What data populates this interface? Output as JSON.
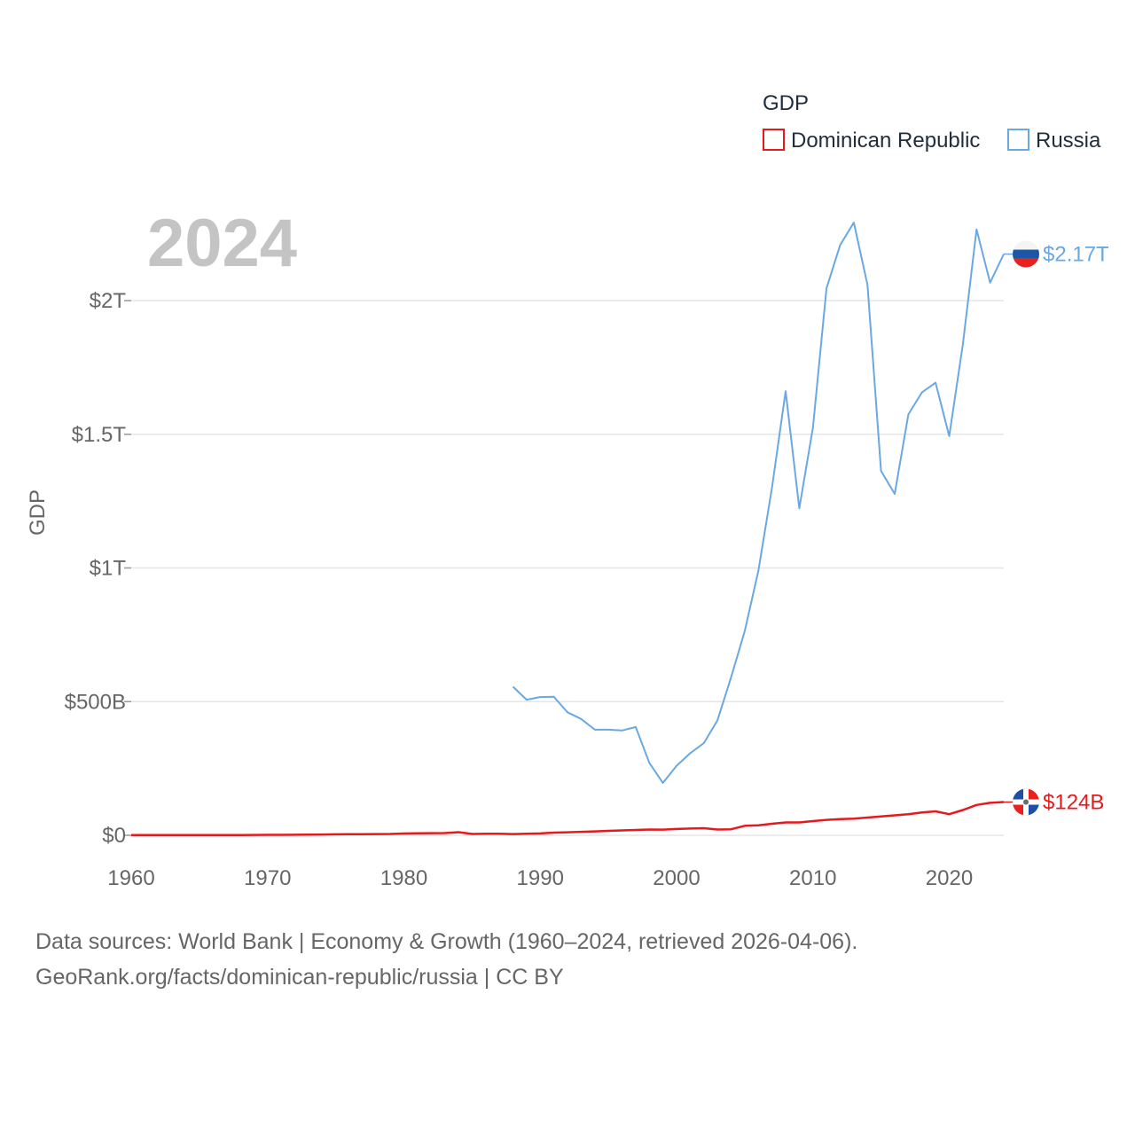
{
  "chart_data": {
    "type": "line",
    "title": "",
    "legend_title": "GDP",
    "legend_position": "top-right",
    "year_label": "2024",
    "ylabel": "GDP",
    "xlabel": "",
    "xlim": [
      1960,
      2024
    ],
    "ylim": [
      0,
      2330000000000
    ],
    "x_ticks": [
      1960,
      1970,
      1980,
      1990,
      2000,
      2010,
      2020
    ],
    "x_tick_labels": [
      "1960",
      "1970",
      "1980",
      "1990",
      "2000",
      "2010",
      "2020"
    ],
    "y_ticks": [
      0,
      500000000000,
      1000000000000,
      1500000000000,
      2000000000000
    ],
    "y_tick_labels": [
      "$0",
      "$500B",
      "$1T",
      "$1.5T",
      "$2T"
    ],
    "grid": true,
    "series": [
      {
        "name": "Dominican Republic",
        "color": "#e41a1c",
        "end_label": "$124B",
        "flag": "dominican-republic-flag",
        "x": [
          1960,
          1961,
          1962,
          1963,
          1964,
          1965,
          1966,
          1967,
          1968,
          1969,
          1970,
          1971,
          1972,
          1973,
          1974,
          1975,
          1976,
          1977,
          1978,
          1979,
          1980,
          1981,
          1982,
          1983,
          1984,
          1985,
          1986,
          1987,
          1988,
          1989,
          1990,
          1991,
          1992,
          1993,
          1994,
          1995,
          1996,
          1997,
          1998,
          1999,
          2000,
          2001,
          2002,
          2003,
          2004,
          2005,
          2006,
          2007,
          2008,
          2009,
          2010,
          2011,
          2012,
          2013,
          2014,
          2015,
          2016,
          2017,
          2018,
          2019,
          2020,
          2021,
          2022,
          2023,
          2024
        ],
        "values": [
          700000000.0,
          700000000.0,
          800000000.0,
          900000000.0,
          1000000000.0,
          900000000.0,
          1000000000.0,
          1100000000.0,
          1100000000.0,
          1300000000.0,
          1500000000.0,
          1700000000.0,
          1900000000.0,
          2300000000.0,
          2900000000.0,
          3600000000.0,
          3900000000.0,
          4400000000.0,
          4600000000.0,
          5100000000.0,
          6600000000.0,
          7300000000.0,
          7900000000.0,
          8400000000.0,
          11600000000.0,
          5000000000.0,
          5900000000.0,
          5600000000.0,
          4800000000.0,
          6000000000.0,
          7100000000.0,
          9800000000.0,
          11400000000.0,
          13000000000.0,
          14700000000.0,
          16500000000.0,
          18400000000.0,
          20000000000.0,
          21400000000.0,
          21300000000.0,
          23700000000.0,
          25300000000.0,
          26400000000.0,
          21600000000.0,
          22700000000.0,
          35600000000.0,
          37500000000.0,
          43200000000.0,
          48000000000.0,
          48200000000.0,
          53200000000.0,
          57700000000.0,
          60800000000.0,
          62400000000.0,
          66300000000.0,
          70200000000.0,
          74500000000.0,
          78900000000.0,
          85400000000.0,
          89500000000.0,
          78800000000.0,
          94500000000.0,
          113500000000.0,
          121400000000.0,
          124300000000.0
        ]
      },
      {
        "name": "Russia",
        "color": "#6aa8e3",
        "end_label": "$2.17T",
        "flag": "russia-flag",
        "x": [
          1988,
          1989,
          1990,
          1991,
          1992,
          1993,
          1994,
          1995,
          1996,
          1997,
          1998,
          1999,
          2000,
          2001,
          2002,
          2003,
          2004,
          2005,
          2006,
          2007,
          2008,
          2009,
          2010,
          2011,
          2012,
          2013,
          2014,
          2015,
          2016,
          2017,
          2018,
          2019,
          2020,
          2021,
          2022,
          2023,
          2024
        ],
        "values": [
          556000000000.0,
          507000000000.0,
          517000000000.0,
          518000000000.0,
          460000000000.0,
          435000000000.0,
          395000000000.0,
          395000000000.0,
          392000000000.0,
          405000000000.0,
          271000000000.0,
          196000000000.0,
          260000000000.0,
          307000000000.0,
          345000000000.0,
          430000000000.0,
          591000000000.0,
          764000000000.0,
          990000000000.0,
          1300000000000.0,
          1661000000000.0,
          1223000000000.0,
          1525000000000.0,
          2046000000000.0,
          2208000000000.0,
          2292000000000.0,
          2059000000000.0,
          1363000000000.0,
          1277000000000.0,
          1574000000000.0,
          1657000000000.0,
          1693000000000.0,
          1493000000000.0,
          1837000000000.0,
          2266000000000.0,
          2067000000000.0,
          2174000000000.0
        ]
      }
    ]
  },
  "footer": {
    "line1": "Data sources: World Bank | Economy & Growth (1960–2024, retrieved 2026-04-06).",
    "line2": "GeoRank.org/facts/dominican-republic/russia | CC BY"
  }
}
